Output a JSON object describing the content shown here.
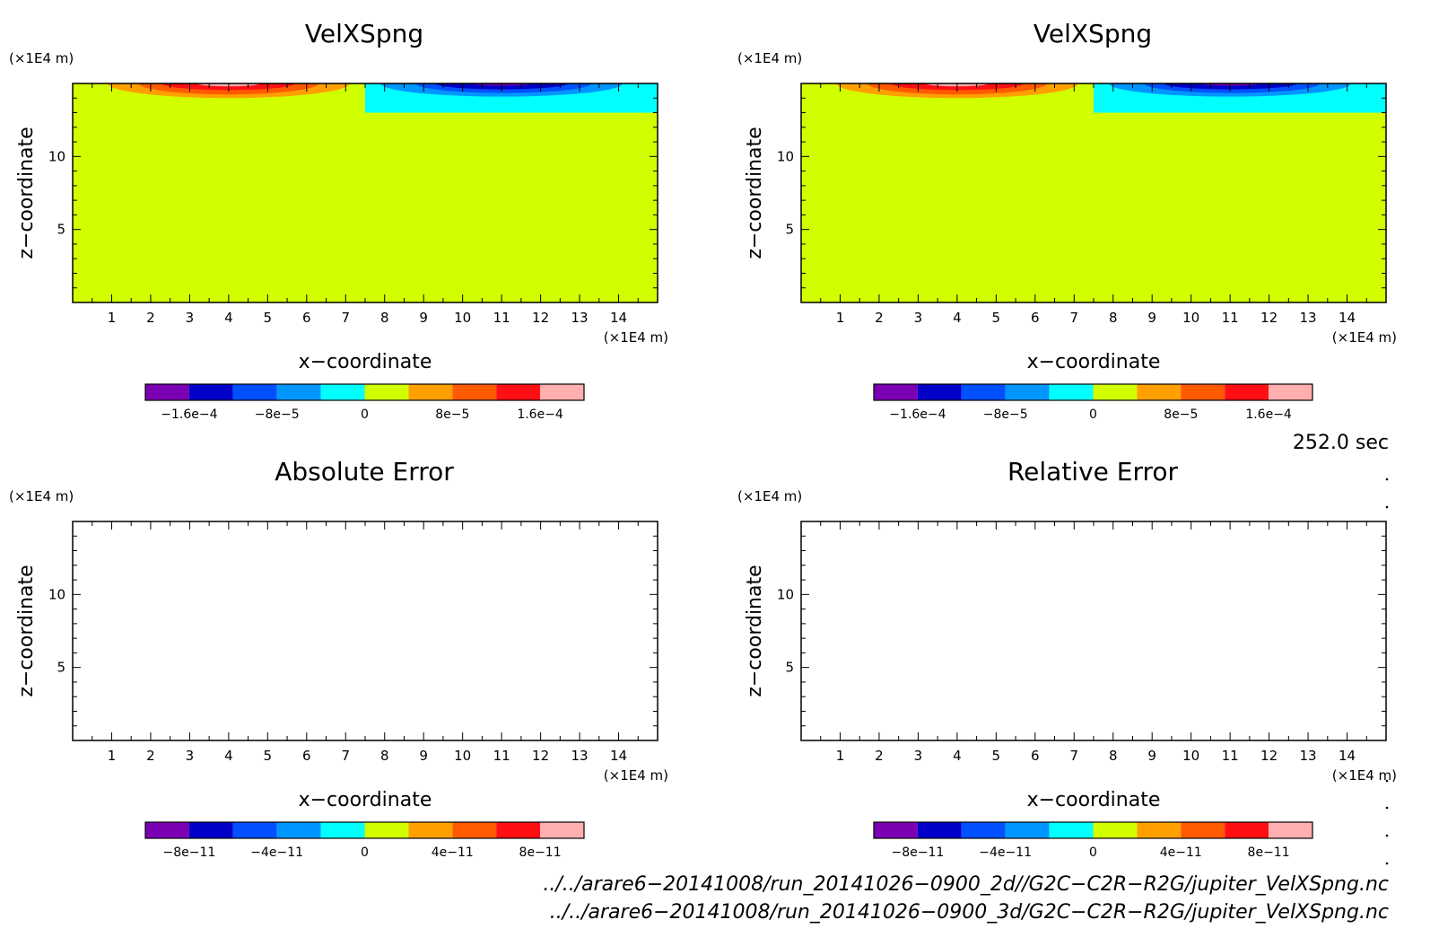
{
  "chart_data": [
    {
      "type": "heatmap",
      "title": "VelXSpng",
      "xlabel": "x−coordinate",
      "ylabel": "z−coordinate",
      "x_unit": "(×1E4 m)",
      "y_unit": "(×1E4 m)",
      "xlim": [
        0,
        15
      ],
      "ylim": [
        0,
        15
      ],
      "x_ticks": [
        "1",
        "2",
        "3",
        "4",
        "5",
        "6",
        "7",
        "8",
        "9",
        "10",
        "11",
        "12",
        "13",
        "14"
      ],
      "y_ticks": [
        "5",
        "10"
      ],
      "background_value": 0,
      "field": "positive velocity lobe (peak ~2e-4) centred near x=4 and negative lobe (~-2e-4) centred near x=11 in the top layer (z>13); zero elsewhere",
      "colorbar": {
        "levels": [
          -0.0002,
          -0.00016,
          -0.00012,
          -8e-05,
          -4e-05,
          0,
          4e-05,
          8e-05,
          0.00012,
          0.00016,
          0.0002
        ],
        "labels": [
          "−1.6e−4",
          "−8e−5",
          "0",
          "8e−5",
          "1.6e−4"
        ],
        "colors": [
          "#7b00b4",
          "#0000c8",
          "#0050ff",
          "#0096ff",
          "#00ffff",
          "#d2ff00",
          "#ffa000",
          "#ff5a00",
          "#ff0f14",
          "#ffafaf"
        ]
      }
    },
    {
      "type": "heatmap",
      "title": "VelXSpng",
      "xlabel": "x−coordinate",
      "ylabel": "z−coordinate",
      "x_unit": "(×1E4 m)",
      "y_unit": "(×1E4 m)",
      "xlim": [
        0,
        15
      ],
      "ylim": [
        0,
        15
      ],
      "x_ticks": [
        "1",
        "2",
        "3",
        "4",
        "5",
        "6",
        "7",
        "8",
        "9",
        "10",
        "11",
        "12",
        "13",
        "14"
      ],
      "y_ticks": [
        "5",
        "10"
      ],
      "background_value": 0,
      "field": "identical to the first panel",
      "colorbar": {
        "levels": [
          -0.0002,
          -0.00016,
          -0.00012,
          -8e-05,
          -4e-05,
          0,
          4e-05,
          8e-05,
          0.00012,
          0.00016,
          0.0002
        ],
        "labels": [
          "−1.6e−4",
          "−8e−5",
          "0",
          "8e−5",
          "1.6e−4"
        ],
        "colors": [
          "#7b00b4",
          "#0000c8",
          "#0050ff",
          "#0096ff",
          "#00ffff",
          "#d2ff00",
          "#ffa000",
          "#ff5a00",
          "#ff0f14",
          "#ffafaf"
        ]
      }
    },
    {
      "type": "heatmap",
      "title": "Absolute Error",
      "xlabel": "x−coordinate",
      "ylabel": "z−coordinate",
      "x_unit": "(×1E4 m)",
      "y_unit": "(×1E4 m)",
      "xlim": [
        0,
        15
      ],
      "ylim": [
        0,
        15
      ],
      "x_ticks": [
        "1",
        "2",
        "3",
        "4",
        "5",
        "6",
        "7",
        "8",
        "9",
        "10",
        "11",
        "12",
        "13",
        "14"
      ],
      "y_ticks": [
        "5",
        "10"
      ],
      "field": "empty (no data drawn)",
      "colorbar": {
        "levels": [
          -1e-10,
          -8e-11,
          -6e-11,
          -4e-11,
          -2e-11,
          0,
          2e-11,
          4e-11,
          6e-11,
          8e-11,
          1e-10
        ],
        "labels": [
          "−8e−11",
          "−4e−11",
          "0",
          "4e−11",
          "8e−11"
        ],
        "colors": [
          "#7b00b4",
          "#0000c8",
          "#0050ff",
          "#0096ff",
          "#00ffff",
          "#d2ff00",
          "#ffa000",
          "#ff5a00",
          "#ff0f14",
          "#ffafaf"
        ]
      }
    },
    {
      "type": "heatmap",
      "title": "Relative Error",
      "xlabel": "x−coordinate",
      "ylabel": "z−coordinate",
      "x_unit": "(×1E4 m)",
      "y_unit": "(×1E4 m)",
      "xlim": [
        0,
        15
      ],
      "ylim": [
        0,
        15
      ],
      "x_ticks": [
        "1",
        "2",
        "3",
        "4",
        "5",
        "6",
        "7",
        "8",
        "9",
        "10",
        "11",
        "12",
        "13",
        "14"
      ],
      "y_ticks": [
        "5",
        "10"
      ],
      "field": "empty (no data drawn)",
      "colorbar": {
        "levels": [
          -1e-10,
          -8e-11,
          -6e-11,
          -4e-11,
          -2e-11,
          0,
          2e-11,
          4e-11,
          6e-11,
          8e-11,
          1e-10
        ],
        "labels": [
          "−8e−11",
          "−4e−11",
          "0",
          "4e−11",
          "8e−11"
        ],
        "colors": [
          "#7b00b4",
          "#0000c8",
          "#0050ff",
          "#0096ff",
          "#00ffff",
          "#d2ff00",
          "#ffa000",
          "#ff5a00",
          "#ff0f14",
          "#ffafaf"
        ]
      }
    }
  ],
  "time_label": "252.0 sec",
  "file_paths": [
    "../../arare6−20141008/run_20141026−0900_2d//G2C−C2R−R2G/jupiter_VelXSpng.nc",
    "../../arare6−20141008/run_20141026−0900_3d/G2C−C2R−R2G/jupiter_VelXSpng.nc"
  ]
}
